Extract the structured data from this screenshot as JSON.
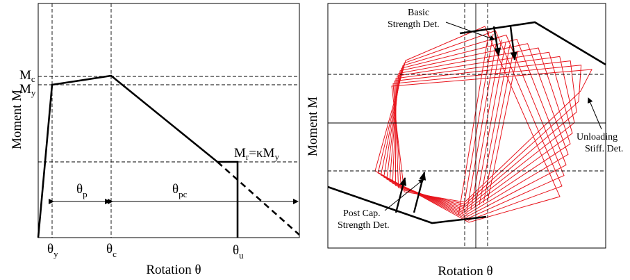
{
  "left_panel": {
    "y_axis_title": "Moment M",
    "x_axis_title": "Rotation θ",
    "labels": {
      "mc_main": "M",
      "mc_sub": "c",
      "my_main": "M",
      "my_sub": "y",
      "mr_main": "M",
      "mr_sub": "r",
      "mr_eq": "=κM",
      "mr_sub2": "y",
      "theta_p_main": "θ",
      "theta_p_sub": "p",
      "theta_pc_main": "θ",
      "theta_pc_sub": "pc",
      "theta_y_main": "θ",
      "theta_y_sub": "y",
      "theta_c_main": "θ",
      "theta_c_sub": "c",
      "theta_u_main": "θ",
      "theta_u_sub": "u"
    }
  },
  "right_panel": {
    "y_axis_title": "Moment M",
    "x_axis_title": "Rotation θ",
    "annotations": {
      "basic_line1": "Basic",
      "basic_line2": "Strength Det.",
      "unloading_line1": "Unloading",
      "unloading_line2": "Stiff. Det.",
      "postcap_line1": "Post Cap.",
      "postcap_line2": "Strength Det."
    },
    "colors": {
      "hysteresis": "#e8141c",
      "backbone": "#000000"
    }
  }
}
